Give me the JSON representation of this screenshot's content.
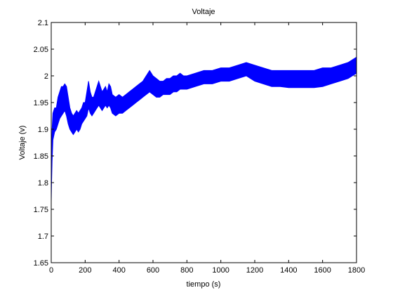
{
  "chart_data": {
    "type": "line",
    "title": "Voltaje",
    "xlabel": "tiempo (s)",
    "ylabel": "Voltaje (v)",
    "xlim": [
      0,
      1800
    ],
    "ylim": [
      1.65,
      2.1
    ],
    "x_ticks": [
      0,
      200,
      400,
      600,
      800,
      1000,
      1200,
      1400,
      1600,
      1800
    ],
    "x_tick_labels": [
      "0",
      "200",
      "400",
      "600",
      "800",
      "1000",
      "1200",
      "1400",
      "1600",
      "1800"
    ],
    "y_ticks": [
      1.65,
      1.7,
      1.75,
      1.8,
      1.85,
      1.9,
      1.95,
      2.0,
      2.05,
      2.1
    ],
    "y_tick_labels": [
      "1.65",
      "1.7",
      "1.75",
      "1.8",
      "1.85",
      "1.9",
      "1.95",
      "2",
      "2.05",
      "2.1"
    ],
    "grid": false,
    "series": [
      {
        "color": "#0000ff",
        "style": "dense oscillating band",
        "x": [
          0,
          2,
          5,
          10,
          20,
          30,
          40,
          50,
          60,
          70,
          80,
          90,
          100,
          110,
          120,
          130,
          140,
          150,
          160,
          170,
          180,
          190,
          200,
          210,
          220,
          230,
          240,
          250,
          260,
          270,
          280,
          290,
          300,
          310,
          320,
          330,
          340,
          350,
          360,
          380,
          400,
          420,
          440,
          460,
          480,
          500,
          520,
          540,
          560,
          580,
          600,
          620,
          640,
          660,
          680,
          700,
          720,
          740,
          760,
          780,
          800,
          850,
          900,
          950,
          1000,
          1050,
          1100,
          1150,
          1200,
          1250,
          1300,
          1350,
          1400,
          1450,
          1500,
          1550,
          1600,
          1650,
          1700,
          1750,
          1800
        ],
        "upper": [
          1.77,
          1.86,
          1.9,
          1.93,
          1.94,
          1.94,
          1.96,
          1.97,
          1.98,
          1.98,
          1.985,
          1.98,
          1.96,
          1.94,
          1.93,
          1.925,
          1.93,
          1.935,
          1.93,
          1.935,
          1.94,
          1.95,
          1.95,
          1.97,
          1.99,
          1.97,
          1.96,
          1.96,
          1.97,
          1.98,
          1.99,
          1.98,
          1.97,
          1.975,
          1.98,
          1.97,
          1.985,
          1.98,
          1.965,
          1.96,
          1.965,
          1.96,
          1.965,
          1.97,
          1.975,
          1.98,
          1.985,
          1.99,
          2.0,
          2.01,
          2.0,
          1.995,
          1.99,
          1.99,
          1.995,
          1.995,
          2.0,
          2.0,
          2.005,
          2.0,
          2.0,
          2.005,
          2.01,
          2.01,
          2.015,
          2.015,
          2.02,
          2.025,
          2.02,
          2.015,
          2.01,
          2.01,
          2.01,
          2.01,
          2.01,
          2.01,
          2.015,
          2.015,
          2.02,
          2.025,
          2.035
        ],
        "lower": [
          1.765,
          1.8,
          1.84,
          1.88,
          1.895,
          1.9,
          1.91,
          1.92,
          1.925,
          1.93,
          1.935,
          1.925,
          1.91,
          1.9,
          1.895,
          1.89,
          1.895,
          1.9,
          1.895,
          1.9,
          1.91,
          1.915,
          1.92,
          1.925,
          1.94,
          1.93,
          1.925,
          1.93,
          1.935,
          1.94,
          1.945,
          1.94,
          1.935,
          1.94,
          1.945,
          1.94,
          1.945,
          1.94,
          1.93,
          1.925,
          1.93,
          1.93,
          1.935,
          1.94,
          1.945,
          1.95,
          1.955,
          1.96,
          1.965,
          1.97,
          1.965,
          1.96,
          1.96,
          1.965,
          1.965,
          1.965,
          1.97,
          1.97,
          1.975,
          1.975,
          1.975,
          1.98,
          1.985,
          1.985,
          1.99,
          1.99,
          1.995,
          2.0,
          1.99,
          1.985,
          1.98,
          1.98,
          1.978,
          1.978,
          1.978,
          1.978,
          1.98,
          1.985,
          1.99,
          1.995,
          2.005
        ]
      }
    ],
    "colors": {
      "background": "#ffffff",
      "axes": "#000000",
      "line": "#0000ff"
    }
  }
}
